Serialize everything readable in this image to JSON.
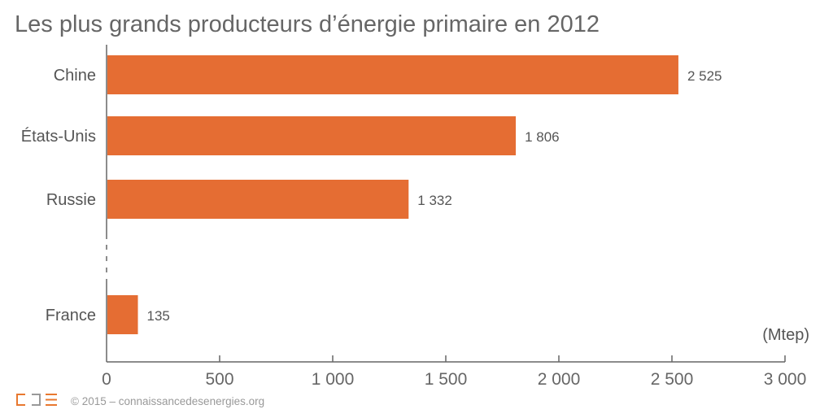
{
  "chart_data": {
    "type": "bar",
    "orientation": "horizontal",
    "title": "Les plus grands producteurs d’énergie primaire en 2012",
    "unit_label": "(Mtep)",
    "categories": [
      "Chine",
      "États-Unis",
      "Russie",
      "France"
    ],
    "values": [
      2525,
      1806,
      1332,
      135
    ],
    "value_labels": [
      "2 525",
      "1 806",
      "1 332",
      "135"
    ],
    "xlim": [
      0,
      3000
    ],
    "xticks": [
      0,
      500,
      1000,
      1500,
      2000,
      2500,
      3000
    ],
    "xtick_labels": [
      "0",
      "500",
      "1 000",
      "1 500",
      "2 000",
      "2 500",
      "3 000"
    ],
    "grid": false,
    "bar_color": "#e56d33"
  },
  "footer": {
    "logo_text": "CDE",
    "credit": "© 2015 – connaissancedesenergies.org"
  }
}
